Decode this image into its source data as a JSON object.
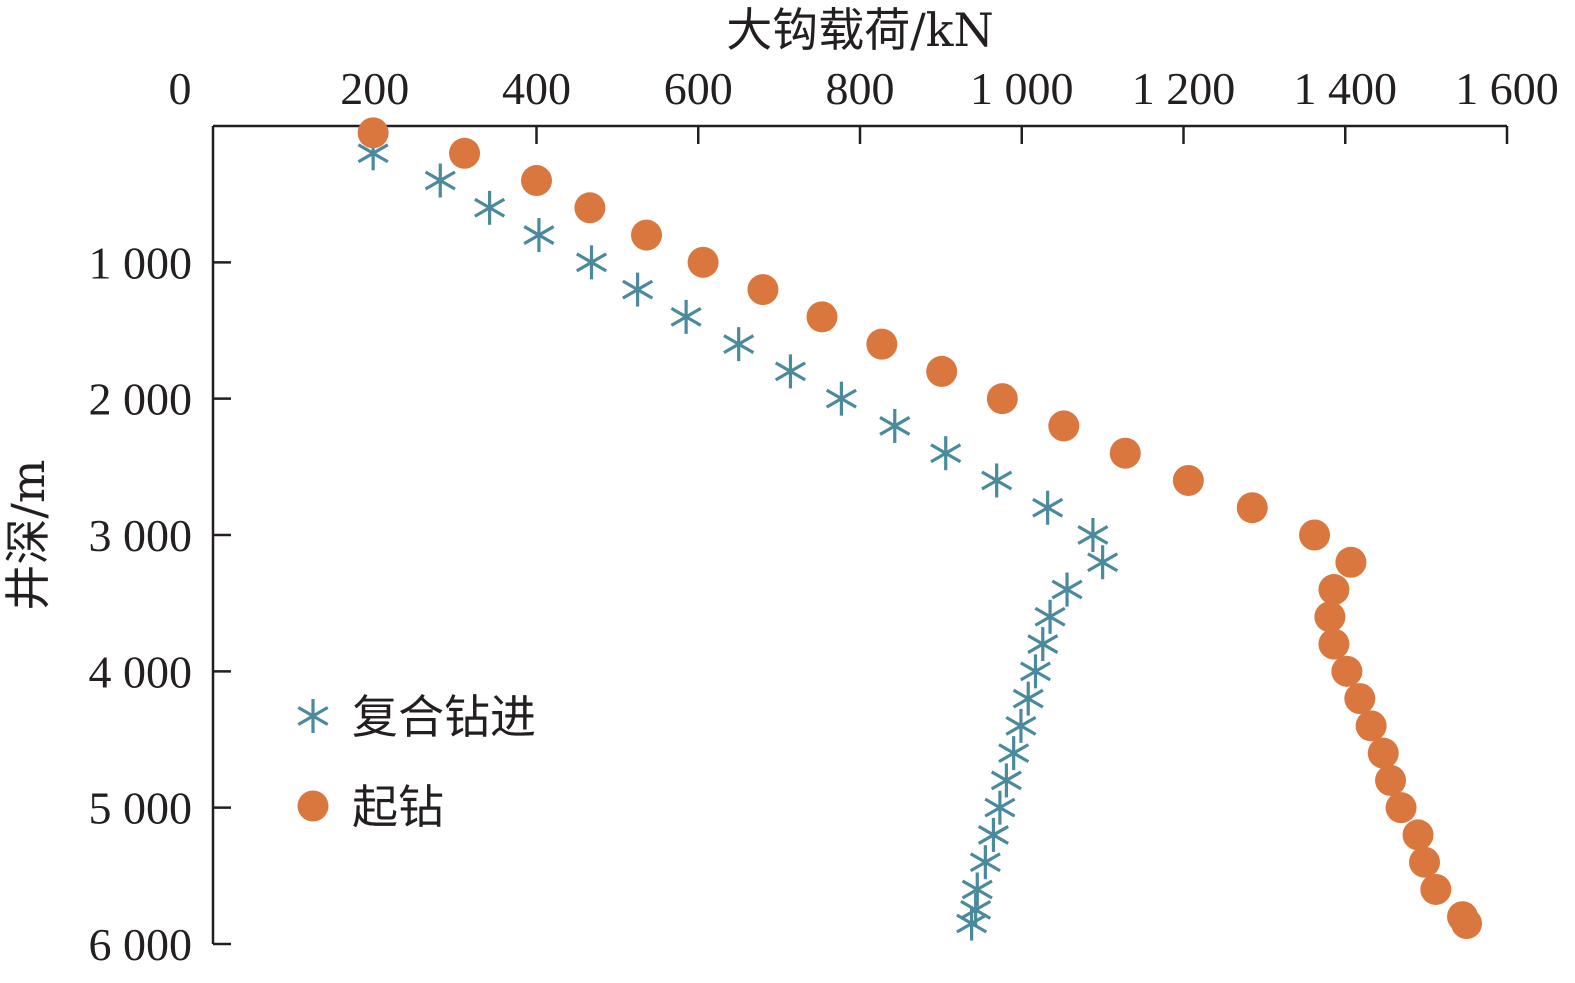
{
  "chart_data": {
    "type": "scatter",
    "xlabel": "大钩载荷/kN",
    "ylabel": "井深/m",
    "xlim": [
      0,
      1600
    ],
    "ylim": [
      0,
      6000
    ],
    "x_axis_position": "top",
    "y_axis_inverted": true,
    "grid": false,
    "legend_position": "bottom-left",
    "x_ticks": [
      {
        "value": 0,
        "label": "0"
      },
      {
        "value": 200,
        "label": "200"
      },
      {
        "value": 400,
        "label": "400"
      },
      {
        "value": 600,
        "label": "600"
      },
      {
        "value": 800,
        "label": "800"
      },
      {
        "value": 1000,
        "label": "1 000"
      },
      {
        "value": 1200,
        "label": "1 200"
      },
      {
        "value": 1400,
        "label": "1 400"
      },
      {
        "value": 1600,
        "label": "1 600"
      }
    ],
    "y_ticks": [
      {
        "value": 1000,
        "label": "1 000"
      },
      {
        "value": 2000,
        "label": "2 000"
      },
      {
        "value": 3000,
        "label": "3 000"
      },
      {
        "value": 4000,
        "label": "4 000"
      },
      {
        "value": 5000,
        "label": "5 000"
      },
      {
        "value": 6000,
        "label": "6 000"
      }
    ],
    "series": [
      {
        "name": "复合钻进",
        "marker": "asterisk",
        "color": "#4a8a9c",
        "points": [
          [
            198,
            200
          ],
          [
            281,
            400
          ],
          [
            342,
            600
          ],
          [
            403,
            800
          ],
          [
            468,
            1000
          ],
          [
            525,
            1200
          ],
          [
            585,
            1400
          ],
          [
            650,
            1600
          ],
          [
            714,
            1800
          ],
          [
            777,
            2000
          ],
          [
            843,
            2200
          ],
          [
            906,
            2400
          ],
          [
            969,
            2600
          ],
          [
            1032,
            2800
          ],
          [
            1088,
            3000
          ],
          [
            1100,
            3200
          ],
          [
            1056,
            3400
          ],
          [
            1035,
            3600
          ],
          [
            1026,
            3800
          ],
          [
            1017,
            4000
          ],
          [
            1008,
            4200
          ],
          [
            999,
            4400
          ],
          [
            990,
            4600
          ],
          [
            981,
            4800
          ],
          [
            973,
            5000
          ],
          [
            965,
            5200
          ],
          [
            955,
            5400
          ],
          [
            945,
            5600
          ],
          [
            943,
            5750
          ],
          [
            938,
            5850
          ]
        ]
      },
      {
        "name": "起钻",
        "marker": "circle",
        "color": "#d9773f",
        "points": [
          [
            198,
            50
          ],
          [
            311,
            200
          ],
          [
            400,
            400
          ],
          [
            466,
            600
          ],
          [
            536,
            800
          ],
          [
            606,
            1000
          ],
          [
            680,
            1200
          ],
          [
            753,
            1400
          ],
          [
            827,
            1600
          ],
          [
            901,
            1800
          ],
          [
            976,
            2000
          ],
          [
            1052,
            2200
          ],
          [
            1128,
            2400
          ],
          [
            1206,
            2600
          ],
          [
            1285,
            2800
          ],
          [
            1362,
            3000
          ],
          [
            1407,
            3200
          ],
          [
            1386,
            3400
          ],
          [
            1381,
            3600
          ],
          [
            1386,
            3800
          ],
          [
            1402,
            4000
          ],
          [
            1418,
            4200
          ],
          [
            1432,
            4400
          ],
          [
            1447,
            4600
          ],
          [
            1456,
            4800
          ],
          [
            1469,
            5000
          ],
          [
            1490,
            5200
          ],
          [
            1498,
            5400
          ],
          [
            1512,
            5600
          ],
          [
            1545,
            5800
          ],
          [
            1550,
            5850
          ]
        ]
      }
    ]
  }
}
